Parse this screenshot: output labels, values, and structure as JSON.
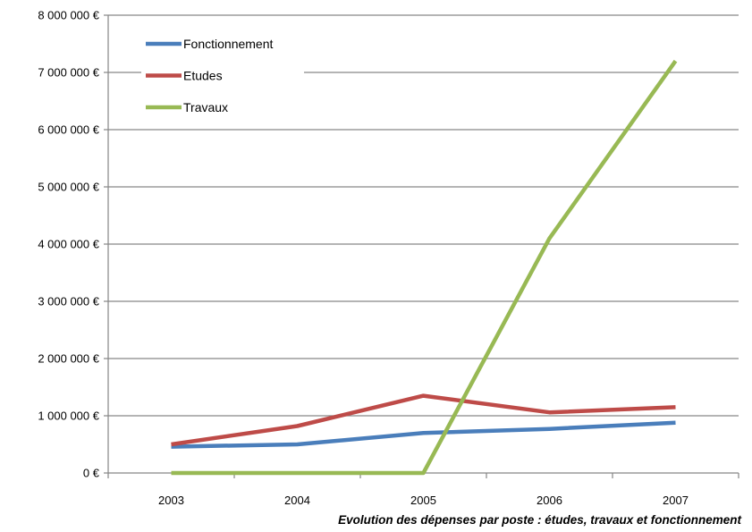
{
  "chart_data": {
    "type": "line",
    "title": "Evolution des dépenses par poste : études, travaux et fonctionnement",
    "xlabel": "",
    "ylabel": "",
    "categories": [
      "2003",
      "2004",
      "2005",
      "2006",
      "2007"
    ],
    "ylim": [
      0,
      8000000
    ],
    "yticks": [
      {
        "value": 0,
        "label": "0 €"
      },
      {
        "value": 1000000,
        "label": "1 000 000 €"
      },
      {
        "value": 2000000,
        "label": "2 000 000 €"
      },
      {
        "value": 3000000,
        "label": "3 000 000 €"
      },
      {
        "value": 4000000,
        "label": "4 000 000 €"
      },
      {
        "value": 5000000,
        "label": "5 000 000 €"
      },
      {
        "value": 6000000,
        "label": "6 000 000 €"
      },
      {
        "value": 7000000,
        "label": "7 000 000 €"
      },
      {
        "value": 8000000,
        "label": "8 000 000 €"
      }
    ],
    "grid": true,
    "legend_position": "top-left",
    "series": [
      {
        "name": "Fonctionnement",
        "color": "#4a7ebb",
        "values": [
          460000,
          500000,
          700000,
          770000,
          880000
        ]
      },
      {
        "name": "Etudes",
        "color": "#be4b48",
        "values": [
          500000,
          820000,
          1350000,
          1060000,
          1150000
        ]
      },
      {
        "name": "Travaux",
        "color": "#98b954",
        "values": [
          0,
          0,
          0,
          4100000,
          7200000
        ]
      }
    ]
  }
}
